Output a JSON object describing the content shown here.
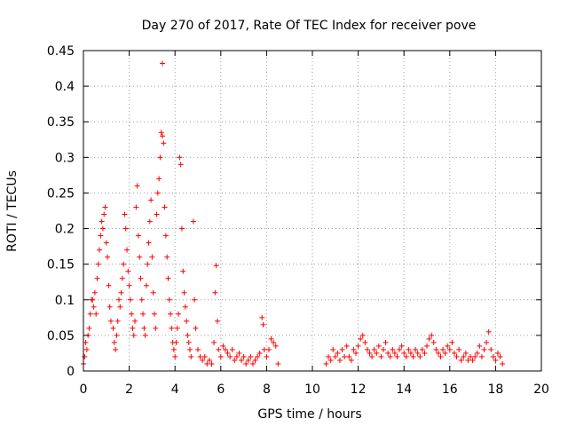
{
  "chart_data": {
    "type": "scatter",
    "title": "Day 270 of 2017, Rate Of TEC Index for receiver pove",
    "xlabel": "GPS time / hours",
    "ylabel": "ROTI / TECUs",
    "xlim": [
      0,
      20
    ],
    "ylim": [
      0,
      0.45
    ],
    "xticks": [
      0,
      2,
      4,
      6,
      8,
      10,
      12,
      14,
      16,
      18,
      20
    ],
    "yticks": [
      0,
      0.05,
      0.1,
      0.15,
      0.2,
      0.25,
      0.3,
      0.35,
      0.4,
      0.45
    ],
    "xtick_labels": [
      "0",
      "2",
      "4",
      "6",
      "8",
      "10",
      "12",
      "14",
      "16",
      "18",
      "20"
    ],
    "ytick_labels": [
      "0",
      "0.05",
      "0.1",
      "0.15",
      "0.2",
      "0.25",
      "0.3",
      "0.35",
      "0.4",
      "0.45"
    ],
    "grid": true,
    "marker": "+",
    "color": "#ff0000",
    "series": [
      {
        "name": "ROTI",
        "points": [
          [
            0.0,
            0.01
          ],
          [
            0.05,
            0.02
          ],
          [
            0.1,
            0.04
          ],
          [
            0.15,
            0.03
          ],
          [
            0.2,
            0.05
          ],
          [
            0.25,
            0.06
          ],
          [
            0.3,
            0.08
          ],
          [
            0.35,
            0.1
          ],
          [
            0.4,
            0.1
          ],
          [
            0.45,
            0.09
          ],
          [
            0.5,
            0.11
          ],
          [
            0.55,
            0.08
          ],
          [
            0.6,
            0.13
          ],
          [
            0.65,
            0.15
          ],
          [
            0.7,
            0.17
          ],
          [
            0.75,
            0.19
          ],
          [
            0.8,
            0.21
          ],
          [
            0.85,
            0.2
          ],
          [
            0.9,
            0.22
          ],
          [
            0.95,
            0.23
          ],
          [
            1.0,
            0.18
          ],
          [
            1.05,
            0.16
          ],
          [
            1.1,
            0.12
          ],
          [
            1.15,
            0.09
          ],
          [
            1.2,
            0.07
          ],
          [
            1.3,
            0.06
          ],
          [
            1.35,
            0.04
          ],
          [
            1.4,
            0.03
          ],
          [
            1.45,
            0.05
          ],
          [
            1.5,
            0.07
          ],
          [
            1.55,
            0.1
          ],
          [
            1.6,
            0.09
          ],
          [
            1.65,
            0.11
          ],
          [
            1.7,
            0.13
          ],
          [
            1.75,
            0.15
          ],
          [
            1.8,
            0.22
          ],
          [
            1.85,
            0.2
          ],
          [
            1.9,
            0.17
          ],
          [
            1.95,
            0.14
          ],
          [
            2.0,
            0.12
          ],
          [
            2.05,
            0.1
          ],
          [
            2.1,
            0.08
          ],
          [
            2.15,
            0.06
          ],
          [
            2.2,
            0.05
          ],
          [
            2.25,
            0.07
          ],
          [
            2.3,
            0.23
          ],
          [
            2.35,
            0.26
          ],
          [
            2.4,
            0.19
          ],
          [
            2.45,
            0.16
          ],
          [
            2.5,
            0.13
          ],
          [
            2.55,
            0.1
          ],
          [
            2.6,
            0.08
          ],
          [
            2.65,
            0.06
          ],
          [
            2.7,
            0.05
          ],
          [
            2.75,
            0.12
          ],
          [
            2.8,
            0.15
          ],
          [
            2.85,
            0.18
          ],
          [
            2.9,
            0.21
          ],
          [
            2.95,
            0.24
          ],
          [
            3.0,
            0.16
          ],
          [
            3.05,
            0.11
          ],
          [
            3.1,
            0.08
          ],
          [
            3.15,
            0.06
          ],
          [
            3.2,
            0.22
          ],
          [
            3.25,
            0.25
          ],
          [
            3.3,
            0.27
          ],
          [
            3.35,
            0.3
          ],
          [
            3.4,
            0.335
          ],
          [
            3.45,
            0.33
          ],
          [
            3.5,
            0.32
          ],
          [
            3.45,
            0.432
          ],
          [
            3.55,
            0.23
          ],
          [
            3.6,
            0.19
          ],
          [
            3.65,
            0.16
          ],
          [
            3.7,
            0.13
          ],
          [
            3.75,
            0.1
          ],
          [
            3.8,
            0.08
          ],
          [
            3.85,
            0.06
          ],
          [
            3.9,
            0.04
          ],
          [
            3.95,
            0.03
          ],
          [
            4.0,
            0.02
          ],
          [
            4.05,
            0.04
          ],
          [
            4.1,
            0.06
          ],
          [
            4.15,
            0.08
          ],
          [
            4.2,
            0.3
          ],
          [
            4.25,
            0.29
          ],
          [
            4.3,
            0.2
          ],
          [
            4.35,
            0.14
          ],
          [
            4.4,
            0.11
          ],
          [
            4.45,
            0.09
          ],
          [
            4.5,
            0.07
          ],
          [
            4.55,
            0.05
          ],
          [
            4.6,
            0.04
          ],
          [
            4.65,
            0.03
          ],
          [
            4.7,
            0.02
          ],
          [
            4.8,
            0.21
          ],
          [
            4.85,
            0.1
          ],
          [
            4.9,
            0.06
          ],
          [
            5.0,
            0.03
          ],
          [
            5.1,
            0.02
          ],
          [
            5.2,
            0.015
          ],
          [
            5.3,
            0.02
          ],
          [
            5.4,
            0.01
          ],
          [
            5.5,
            0.015
          ],
          [
            5.6,
            0.01
          ],
          [
            5.7,
            0.04
          ],
          [
            5.75,
            0.11
          ],
          [
            5.8,
            0.148
          ],
          [
            5.85,
            0.07
          ],
          [
            5.9,
            0.03
          ],
          [
            6.0,
            0.02
          ],
          [
            6.1,
            0.035
          ],
          [
            6.2,
            0.03
          ],
          [
            6.3,
            0.025
          ],
          [
            6.4,
            0.02
          ],
          [
            6.5,
            0.03
          ],
          [
            6.6,
            0.015
          ],
          [
            6.7,
            0.02
          ],
          [
            6.8,
            0.025
          ],
          [
            6.9,
            0.015
          ],
          [
            7.0,
            0.02
          ],
          [
            7.1,
            0.01
          ],
          [
            7.2,
            0.015
          ],
          [
            7.3,
            0.02
          ],
          [
            7.4,
            0.01
          ],
          [
            7.5,
            0.015
          ],
          [
            7.6,
            0.02
          ],
          [
            7.7,
            0.025
          ],
          [
            7.8,
            0.075
          ],
          [
            7.85,
            0.065
          ],
          [
            7.9,
            0.03
          ],
          [
            8.0,
            0.02
          ],
          [
            8.1,
            0.03
          ],
          [
            8.2,
            0.045
          ],
          [
            8.3,
            0.04
          ],
          [
            8.4,
            0.035
          ],
          [
            8.5,
            0.01
          ],
          [
            10.6,
            0.01
          ],
          [
            10.7,
            0.02
          ],
          [
            10.8,
            0.015
          ],
          [
            10.9,
            0.03
          ],
          [
            11.0,
            0.02
          ],
          [
            11.1,
            0.025
          ],
          [
            11.2,
            0.015
          ],
          [
            11.3,
            0.03
          ],
          [
            11.4,
            0.02
          ],
          [
            11.5,
            0.035
          ],
          [
            11.6,
            0.02
          ],
          [
            11.7,
            0.015
          ],
          [
            11.8,
            0.03
          ],
          [
            11.9,
            0.025
          ],
          [
            12.0,
            0.035
          ],
          [
            12.1,
            0.045
          ],
          [
            12.2,
            0.05
          ],
          [
            12.3,
            0.04
          ],
          [
            12.4,
            0.03
          ],
          [
            12.5,
            0.025
          ],
          [
            12.6,
            0.02
          ],
          [
            12.7,
            0.03
          ],
          [
            12.8,
            0.025
          ],
          [
            12.9,
            0.035
          ],
          [
            13.0,
            0.02
          ],
          [
            13.1,
            0.03
          ],
          [
            13.2,
            0.04
          ],
          [
            13.3,
            0.025
          ],
          [
            13.4,
            0.02
          ],
          [
            13.5,
            0.03
          ],
          [
            13.6,
            0.025
          ],
          [
            13.7,
            0.02
          ],
          [
            13.8,
            0.03
          ],
          [
            13.9,
            0.035
          ],
          [
            14.0,
            0.025
          ],
          [
            14.1,
            0.02
          ],
          [
            14.2,
            0.03
          ],
          [
            14.3,
            0.025
          ],
          [
            14.4,
            0.02
          ],
          [
            14.5,
            0.03
          ],
          [
            14.6,
            0.025
          ],
          [
            14.7,
            0.02
          ],
          [
            14.8,
            0.03
          ],
          [
            14.9,
            0.025
          ],
          [
            15.0,
            0.035
          ],
          [
            15.1,
            0.045
          ],
          [
            15.2,
            0.05
          ],
          [
            15.3,
            0.04
          ],
          [
            15.4,
            0.03
          ],
          [
            15.5,
            0.025
          ],
          [
            15.6,
            0.02
          ],
          [
            15.7,
            0.03
          ],
          [
            15.8,
            0.025
          ],
          [
            15.9,
            0.035
          ],
          [
            16.0,
            0.03
          ],
          [
            16.1,
            0.04
          ],
          [
            16.2,
            0.025
          ],
          [
            16.3,
            0.02
          ],
          [
            16.4,
            0.03
          ],
          [
            16.5,
            0.015
          ],
          [
            16.6,
            0.02
          ],
          [
            16.7,
            0.025
          ],
          [
            16.8,
            0.015
          ],
          [
            16.9,
            0.02
          ],
          [
            17.0,
            0.015
          ],
          [
            17.1,
            0.02
          ],
          [
            17.2,
            0.025
          ],
          [
            17.3,
            0.035
          ],
          [
            17.4,
            0.02
          ],
          [
            17.5,
            0.03
          ],
          [
            17.6,
            0.04
          ],
          [
            17.7,
            0.055
          ],
          [
            17.8,
            0.03
          ],
          [
            17.9,
            0.02
          ],
          [
            18.0,
            0.015
          ],
          [
            18.1,
            0.025
          ],
          [
            18.2,
            0.02
          ],
          [
            18.3,
            0.01
          ]
        ]
      }
    ]
  }
}
